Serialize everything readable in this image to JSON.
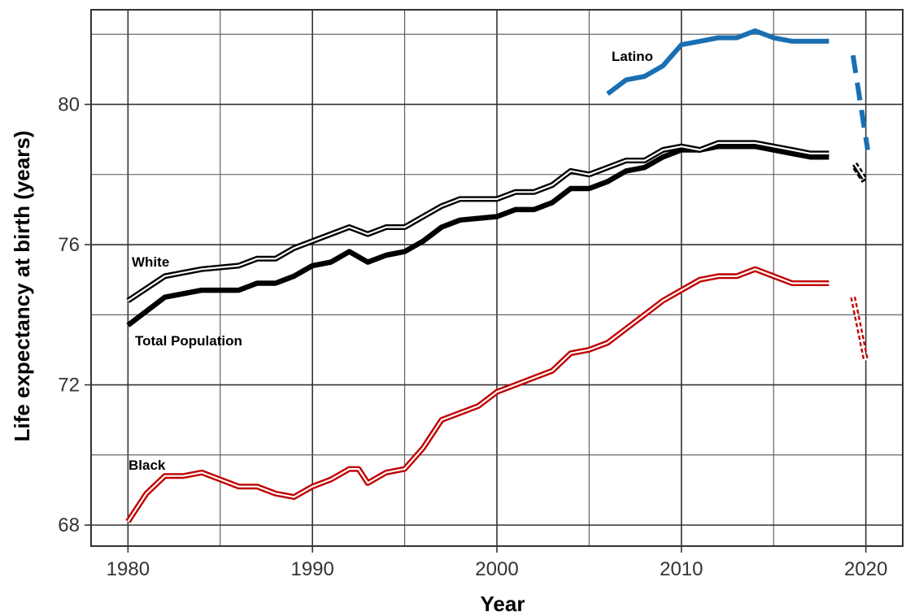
{
  "chart_data": {
    "type": "line",
    "xlabel": "Year",
    "ylabel": "Life expectancy at birth (years)",
    "xlim": [
      1978,
      2022
    ],
    "ylim": [
      67.4,
      82.7
    ],
    "x_ticks": [
      1980,
      1990,
      2000,
      2010,
      2020
    ],
    "y_ticks": [
      68,
      72,
      76,
      80
    ],
    "grid": true,
    "series": [
      {
        "name": "White",
        "color": "#000000",
        "style": "double",
        "x": [
          1980,
          1982,
          1984,
          1986,
          1987,
          1988,
          1989,
          1990,
          1992,
          1993,
          1994,
          1995,
          1996,
          1997,
          1998,
          2000,
          2001,
          2002,
          2003,
          2004,
          2005,
          2006,
          2007,
          2008,
          2009,
          2010,
          2011,
          2012,
          2014,
          2016,
          2017,
          2018
        ],
        "y": [
          74.4,
          75.1,
          75.3,
          75.4,
          75.6,
          75.6,
          75.9,
          76.1,
          76.5,
          76.3,
          76.5,
          76.5,
          76.8,
          77.1,
          77.3,
          77.3,
          77.5,
          77.5,
          77.7,
          78.1,
          78.0,
          78.2,
          78.4,
          78.4,
          78.7,
          78.8,
          78.7,
          78.9,
          78.9,
          78.7,
          78.6,
          78.6
        ],
        "projection": {
          "x": [
            2019.4,
            2019.9
          ],
          "y": [
            78.3,
            77.9
          ]
        }
      },
      {
        "name": "Total Population",
        "color": "#000000",
        "style": "thick",
        "x": [
          1980,
          1982,
          1984,
          1986,
          1987,
          1988,
          1989,
          1990,
          1991,
          1992,
          1993,
          1994,
          1995,
          1996,
          1997,
          1998,
          2000,
          2001,
          2002,
          2003,
          2004,
          2005,
          2006,
          2007,
          2008,
          2009,
          2010,
          2011,
          2012,
          2014,
          2016,
          2017,
          2018
        ],
        "y": [
          73.7,
          74.5,
          74.7,
          74.7,
          74.9,
          74.9,
          75.1,
          75.4,
          75.5,
          75.8,
          75.5,
          75.7,
          75.8,
          76.1,
          76.5,
          76.7,
          76.8,
          77.0,
          77.0,
          77.2,
          77.6,
          77.6,
          77.8,
          78.1,
          78.2,
          78.5,
          78.7,
          78.7,
          78.8,
          78.8,
          78.6,
          78.5,
          78.5
        ],
        "projection": {
          "x": [
            2019.4,
            2019.9
          ],
          "y": [
            78.2,
            77.8
          ]
        }
      },
      {
        "name": "Black",
        "color": "#c00000",
        "style": "double",
        "x": [
          1980,
          1981,
          1982,
          1983,
          1984,
          1985,
          1986,
          1987,
          1988,
          1989,
          1990,
          1991,
          1992,
          1992.5,
          1993,
          1994,
          1995,
          1996,
          1997,
          1998,
          1999,
          2000,
          2001,
          2002,
          2003,
          2004,
          2005,
          2006,
          2007,
          2008,
          2009,
          2010,
          2011,
          2012,
          2013,
          2014,
          2015,
          2016,
          2017,
          2018
        ],
        "y": [
          68.1,
          68.9,
          69.4,
          69.4,
          69.5,
          69.3,
          69.1,
          69.1,
          68.9,
          68.8,
          69.1,
          69.3,
          69.6,
          69.6,
          69.2,
          69.5,
          69.6,
          70.2,
          71.0,
          71.2,
          71.4,
          71.8,
          72.0,
          72.2,
          72.4,
          72.9,
          73.0,
          73.2,
          73.6,
          74.0,
          74.4,
          74.7,
          75.0,
          75.1,
          75.1,
          75.3,
          75.1,
          74.9,
          74.9,
          74.9
        ],
        "projection": {
          "x": [
            2019.3,
            2020.0
          ],
          "y": [
            74.5,
            72.7
          ]
        }
      },
      {
        "name": "Latino",
        "color": "#1a6fb3",
        "style": "thick",
        "x": [
          2006,
          2007,
          2008,
          2009,
          2010,
          2011,
          2012,
          2013,
          2014,
          2015,
          2016,
          2017,
          2018
        ],
        "y": [
          80.3,
          80.7,
          80.8,
          81.1,
          81.7,
          81.8,
          81.9,
          81.9,
          82.1,
          81.9,
          81.8,
          81.8,
          81.8
        ],
        "projection": {
          "x": [
            2019.3,
            2020.1
          ],
          "y": [
            81.4,
            78.7
          ]
        }
      }
    ]
  }
}
